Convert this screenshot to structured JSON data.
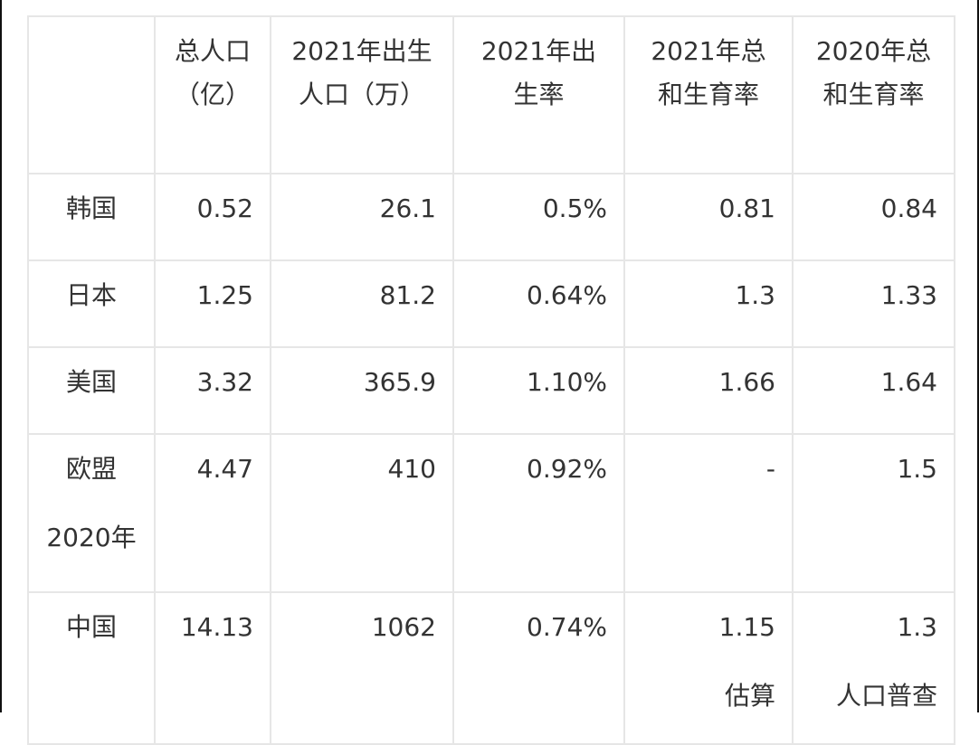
{
  "table": {
    "headers": [
      "",
      "总人口（亿）",
      "2021年出生人口（万）",
      "2021年出生率",
      "2021年总和生育率",
      "2020年总和生育率"
    ],
    "rows": [
      {
        "country": "韩国",
        "population": "0.52",
        "births": "26.1",
        "birth_rate": "0.5%",
        "tfr_2021": "0.81",
        "tfr_2020": "0.84"
      },
      {
        "country": "日本",
        "population": "1.25",
        "births": "81.2",
        "birth_rate": "0.64%",
        "tfr_2021": "1.3",
        "tfr_2020": "1.33"
      },
      {
        "country": "美国",
        "population": "3.32",
        "births": "365.9",
        "birth_rate": "1.10%",
        "tfr_2021": "1.66",
        "tfr_2020": "1.64"
      },
      {
        "country": "欧盟2020年",
        "population": "4.47",
        "births": "410",
        "birth_rate": "0.92%",
        "tfr_2021": "-",
        "tfr_2020": "1.5"
      },
      {
        "country": "中国",
        "population": "14.13",
        "births": "1062",
        "birth_rate": "0.74%",
        "tfr_2021": "1.15",
        "tfr_2021_note": "估算",
        "tfr_2020": "1.3",
        "tfr_2020_note": "人口普查"
      }
    ]
  }
}
